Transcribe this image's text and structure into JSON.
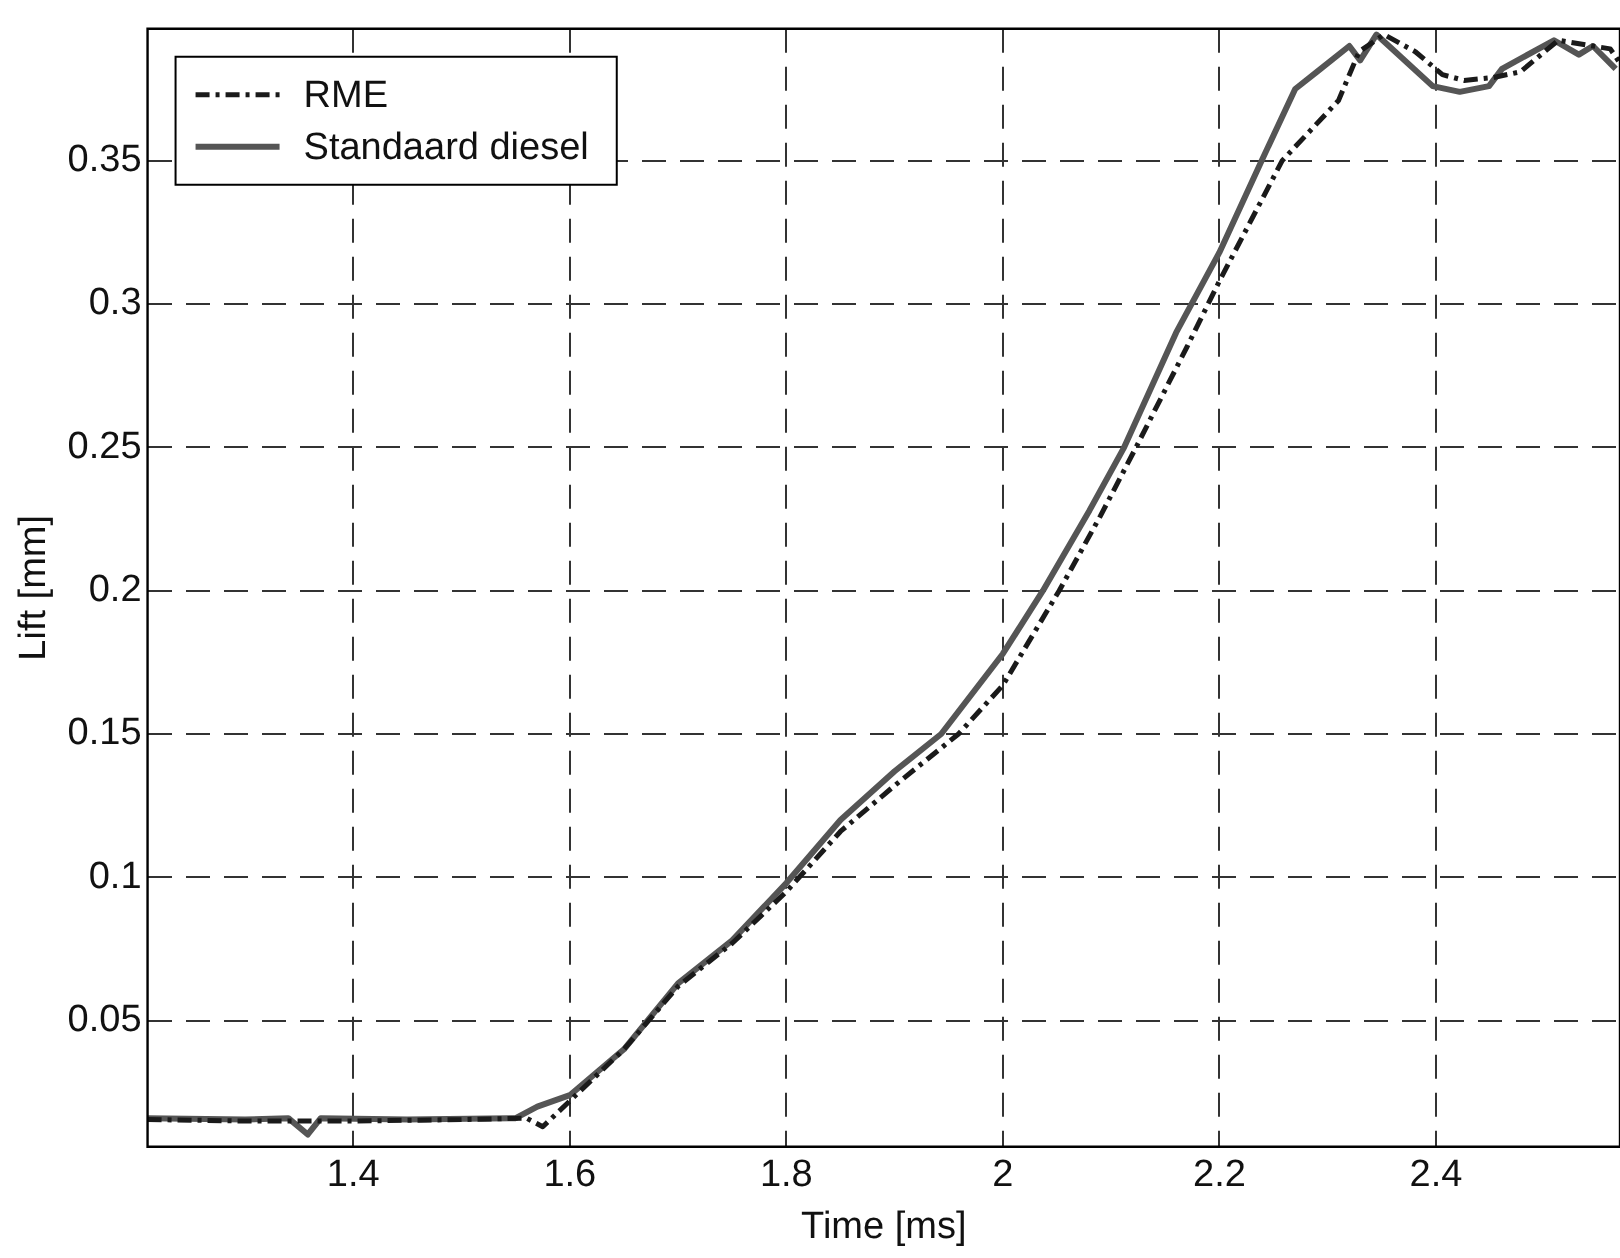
{
  "chart_data": {
    "type": "line",
    "xlabel": "Time [ms]",
    "ylabel": "Lift [mm]",
    "xlim": [
      1.21,
      2.57
    ],
    "ylim": [
      0.006,
      0.396
    ],
    "xticks": [
      1.4,
      1.6,
      1.8,
      2,
      2.2,
      2.4
    ],
    "yticks": [
      0.05,
      0.1,
      0.15,
      0.2,
      0.25,
      0.3,
      0.35
    ],
    "grid": true,
    "legend": "top left",
    "marker": "none",
    "series": [
      {
        "name": "RME",
        "color": "#1a1a1a",
        "line_style": "dashed",
        "x": [
          1.21,
          1.3,
          1.4,
          1.5,
          1.56,
          1.575,
          1.6,
          1.65,
          1.7,
          1.75,
          1.8,
          1.85,
          1.9,
          1.959,
          2.0,
          2.052,
          2.09,
          2.123,
          2.17,
          2.2,
          2.258,
          2.31,
          2.329,
          2.352,
          2.381,
          2.406,
          2.426,
          2.453,
          2.478,
          2.513,
          2.561,
          2.57
        ],
        "values": [
          0.0155,
          0.015,
          0.015,
          0.0155,
          0.016,
          0.013,
          0.022,
          0.04,
          0.062,
          0.077,
          0.095,
          0.116,
          0.132,
          0.15,
          0.167,
          0.2,
          0.226,
          0.25,
          0.285,
          0.308,
          0.35,
          0.371,
          0.388,
          0.394,
          0.388,
          0.38,
          0.378,
          0.379,
          0.381,
          0.392,
          0.389,
          0.384
        ]
      },
      {
        "name": "Standaard diesel",
        "color": "#555555",
        "line_style": "solid",
        "x": [
          1.21,
          1.3,
          1.34,
          1.358,
          1.37,
          1.45,
          1.55,
          1.57,
          1.6,
          1.65,
          1.7,
          1.75,
          1.8,
          1.85,
          1.9,
          1.943,
          2.0,
          2.037,
          2.08,
          2.112,
          2.16,
          2.2,
          2.239,
          2.27,
          2.29,
          2.32,
          2.33,
          2.345,
          2.397,
          2.422,
          2.449,
          2.461,
          2.509,
          2.532,
          2.545,
          2.566
        ],
        "values": [
          0.016,
          0.0155,
          0.016,
          0.0103,
          0.016,
          0.0155,
          0.016,
          0.02,
          0.024,
          0.04,
          0.063,
          0.078,
          0.098,
          0.12,
          0.137,
          0.15,
          0.178,
          0.2,
          0.228,
          0.25,
          0.29,
          0.318,
          0.35,
          0.375,
          0.381,
          0.39,
          0.385,
          0.394,
          0.376,
          0.374,
          0.376,
          0.382,
          0.392,
          0.387,
          0.39,
          0.382
        ]
      }
    ]
  }
}
